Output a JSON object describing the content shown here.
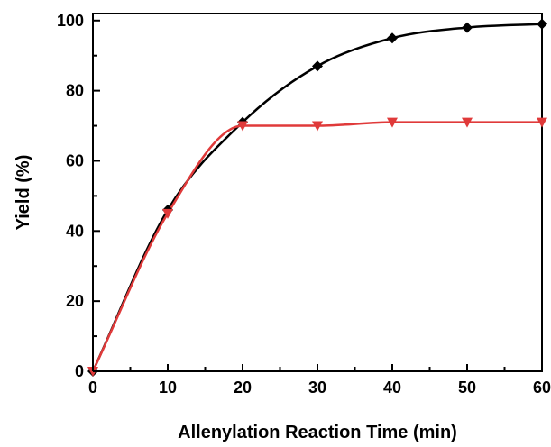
{
  "chart_data": {
    "type": "scatter",
    "xlabel": "Allenylation Reaction Time (min)",
    "ylabel": "Yield (%)",
    "xlim": [
      0,
      60
    ],
    "ylim": [
      0,
      100
    ],
    "x_ticks": [
      "0",
      "10",
      "20",
      "30",
      "40",
      "50",
      "60"
    ],
    "y_ticks": [
      "0",
      "20",
      "40",
      "60",
      "80",
      "100"
    ],
    "grid": false,
    "legend": "none",
    "series": [
      {
        "marker": "diamond",
        "color": "#000000",
        "x": [
          0,
          10,
          20,
          30,
          40,
          50,
          60
        ],
        "y": [
          0,
          46,
          71,
          87,
          95,
          98,
          99
        ]
      },
      {
        "marker": "triangle-down",
        "color": "#e03a3a",
        "x": [
          0,
          10,
          20,
          30,
          40,
          50,
          60
        ],
        "y": [
          0,
          45,
          70,
          70,
          71,
          71,
          71
        ]
      }
    ]
  }
}
